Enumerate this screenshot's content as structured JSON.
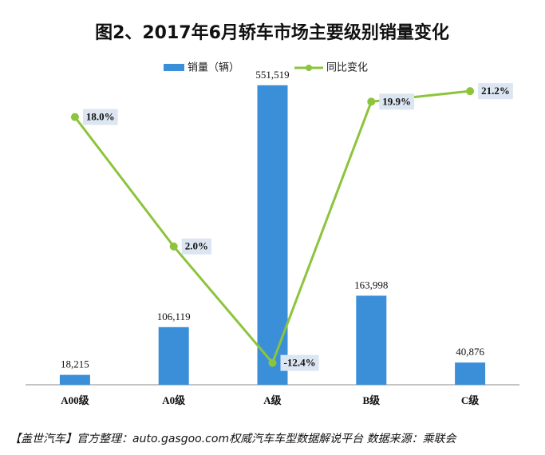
{
  "chart_data": {
    "type": "bar_line",
    "title": "图2、2017年6月轿车市场主要级别销量变化",
    "categories": [
      "A00级",
      "A0级",
      "A级",
      "B级",
      "C级"
    ],
    "series": [
      {
        "name": "销量（辆）",
        "type": "bar",
        "color": "#3b8fd9",
        "values": [
          18215,
          106119,
          551519,
          163998,
          40876
        ],
        "value_labels": [
          "18,215",
          "106,119",
          "551,519",
          "163,998",
          "40,876"
        ]
      },
      {
        "name": "同比变化",
        "type": "line",
        "axis": "y2",
        "color": "#8cc43c",
        "values": [
          18.0,
          2.0,
          -12.4,
          19.9,
          21.2
        ],
        "value_labels": [
          "18.0%",
          "2.0%",
          "-12.4%",
          "19.9%",
          "21.2%"
        ]
      }
    ],
    "ylim": [
      0,
      560000
    ],
    "y2lim": [
      -15.1,
      22.5
    ],
    "footer": "【盖世汽车】官方整理：auto.gasgoo.com权威汽车车型数据解说平台 数据来源：乘联会"
  }
}
